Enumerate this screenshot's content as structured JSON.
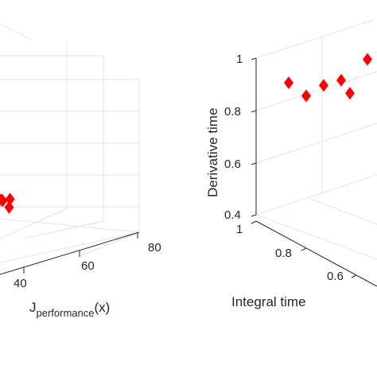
{
  "chart_data": [
    {
      "type": "scatter",
      "panel": "left",
      "x_axis": {
        "label_main": "J",
        "label_sub": "performance",
        "label_suffix": "(x)",
        "ticks": [
          "40",
          "60",
          "80"
        ]
      },
      "marker": {
        "shape": "diamond",
        "color": "#ff0000"
      },
      "points": [
        {
          "x": 33,
          "y": 0.55,
          "z": 0.55
        },
        {
          "x": 35,
          "y": 0.6,
          "z": 0.52
        },
        {
          "x": 37,
          "y": 0.58,
          "z": 0.56
        },
        {
          "x": 38,
          "y": 0.62,
          "z": 0.53
        },
        {
          "x": 40,
          "y": 0.55,
          "z": 0.54
        },
        {
          "x": 41,
          "y": 0.6,
          "z": 0.5
        },
        {
          "x": 42,
          "y": 0.58,
          "z": 0.55
        }
      ]
    },
    {
      "type": "scatter",
      "panel": "right",
      "z_axis": {
        "label": "Derivative time",
        "ticks": [
          "0.4",
          "0.6",
          "0.8",
          "1"
        ]
      },
      "y_axis": {
        "label": "Integral time",
        "ticks": [
          "0.6",
          "0.8",
          "1"
        ]
      },
      "marker": {
        "shape": "diamond",
        "color": "#ff0000"
      },
      "points": [
        {
          "x": 0.9,
          "z": 0.96
        },
        {
          "x": 0.92,
          "z": 0.91
        },
        {
          "x": 0.94,
          "z": 0.95
        },
        {
          "x": 0.96,
          "z": 0.97
        },
        {
          "x": 0.97,
          "z": 0.92
        },
        {
          "x": 0.99,
          "z": 1.05
        }
      ]
    }
  ]
}
